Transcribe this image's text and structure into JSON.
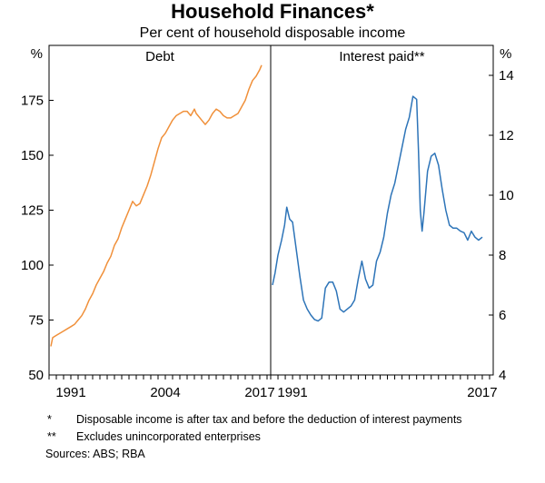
{
  "title": "Household Finances*",
  "subtitle": "Per cent of household disposable income",
  "footnotes": [
    {
      "mark": "*",
      "text": "Disposable income is after tax and before the deduction of interest payments"
    },
    {
      "mark": "**",
      "text": "Excludes unincorporated enterprises"
    }
  ],
  "sources": "Sources: ABS; RBA",
  "colors": {
    "debt": "#F0903A",
    "interest": "#2D74B8"
  },
  "chart_data": [
    {
      "type": "line",
      "title": "Debt",
      "ylabel": "%",
      "axis_side": "left",
      "ylim": [
        50,
        200
      ],
      "yticks": [
        50,
        75,
        100,
        125,
        150,
        175
      ],
      "xlim": [
        1988,
        2018.5
      ],
      "xticks": [
        1991,
        2004,
        2017
      ],
      "series": [
        {
          "x": [
            1988.25,
            1988.5,
            1989,
            1989.5,
            1990,
            1990.5,
            1991,
            1991.5,
            1992,
            1992.5,
            1993,
            1993.5,
            1994,
            1994.5,
            1995,
            1995.5,
            1996,
            1996.5,
            1997,
            1997.5,
            1998,
            1998.5,
            1999,
            1999.5,
            2000,
            2000.5,
            2001,
            2001.5,
            2002,
            2002.5,
            2003,
            2003.5,
            2004,
            2004.5,
            2005,
            2005.5,
            2006,
            2006.5,
            2007,
            2007.5,
            2008,
            2008.25,
            2008.5,
            2009,
            2009.5,
            2010,
            2010.5,
            2011,
            2011.5,
            2012,
            2012.5,
            2013,
            2013.5,
            2014,
            2014.5,
            2015,
            2015.5,
            2016,
            2016.5,
            2017,
            2017.25
          ],
          "y": [
            63,
            67,
            68,
            69,
            70,
            71,
            72,
            73,
            75,
            77,
            80,
            84,
            87,
            91,
            94,
            97,
            101,
            104,
            109,
            112,
            117,
            121,
            125,
            129,
            127,
            128,
            132,
            136,
            141,
            147,
            153,
            158,
            160,
            163,
            166,
            168,
            169,
            170,
            170,
            168,
            171,
            169,
            168,
            166,
            164,
            166,
            169,
            171,
            170,
            168,
            167,
            167,
            168,
            169,
            172,
            175,
            180,
            184,
            186,
            189,
            191
          ]
        }
      ]
    },
    {
      "type": "line",
      "title": "Interest paid**",
      "ylabel": "%",
      "axis_side": "right",
      "ylim": [
        4,
        15
      ],
      "yticks": [
        4,
        6,
        8,
        10,
        12,
        14
      ],
      "xlim": [
        1988,
        2018.5
      ],
      "xticks": [
        1991,
        2017
      ],
      "series": [
        {
          "x": [
            1988.25,
            1988.6,
            1989,
            1989.5,
            1989.9,
            1990.2,
            1990.6,
            1991,
            1991.5,
            1992,
            1992.5,
            1993,
            1993.5,
            1994,
            1994.5,
            1995,
            1995.5,
            1996,
            1996.5,
            1997,
            1997.5,
            1998,
            1998.5,
            1999,
            1999.5,
            2000,
            2000.5,
            2001,
            2001.5,
            2002,
            2002.5,
            2003,
            2003.5,
            2004,
            2004.5,
            2005,
            2005.5,
            2006,
            2006.5,
            2007,
            2007.5,
            2008,
            2008.25,
            2008.5,
            2008.75,
            2009,
            2009.5,
            2010,
            2010.5,
            2011,
            2011.5,
            2012,
            2012.5,
            2013,
            2013.5,
            2014,
            2014.5,
            2015,
            2015.5,
            2016,
            2016.5,
            2017
          ],
          "y": [
            7.0,
            7.4,
            8.0,
            8.5,
            9.0,
            9.6,
            9.2,
            9.1,
            8.2,
            7.3,
            6.5,
            6.2,
            6.0,
            5.85,
            5.8,
            5.9,
            6.9,
            7.1,
            7.1,
            6.8,
            6.2,
            6.1,
            6.2,
            6.3,
            6.5,
            7.2,
            7.8,
            7.2,
            6.9,
            7.0,
            7.8,
            8.1,
            8.6,
            9.4,
            10.0,
            10.4,
            11.0,
            11.6,
            12.2,
            12.6,
            13.3,
            13.2,
            11.5,
            9.5,
            8.8,
            9.4,
            10.8,
            11.3,
            11.4,
            11.0,
            10.2,
            9.5,
            9.0,
            8.9,
            8.9,
            8.8,
            8.75,
            8.5,
            8.8,
            8.6,
            8.5,
            8.6
          ]
        }
      ]
    }
  ]
}
